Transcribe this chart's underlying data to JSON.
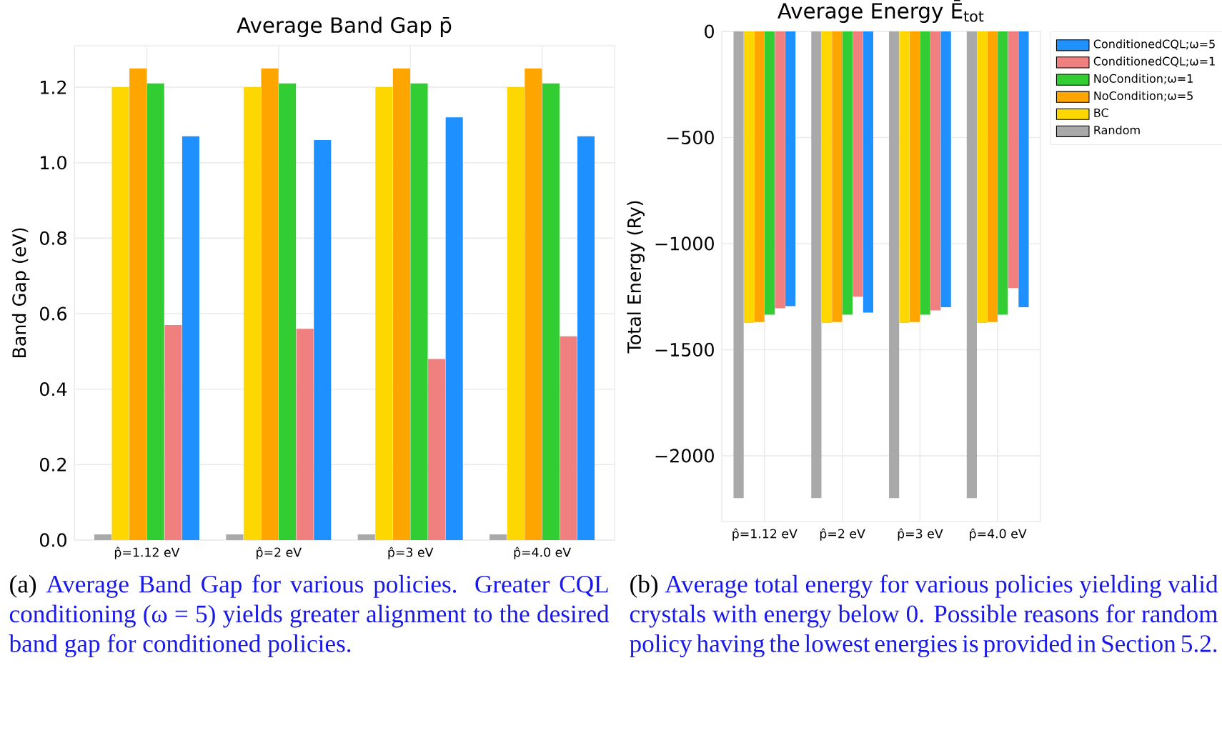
{
  "chart_data": [
    {
      "type": "bar",
      "title": "Average Band Gap p̄",
      "ylabel": "Band Gap (eV)",
      "categories": [
        "p̂=1.12 eV",
        "p̂=2 eV",
        "p̂=3 eV",
        "p̂=4.0 eV"
      ],
      "series": [
        {
          "color": "#a9a9a9",
          "values": [
            0.015,
            0.015,
            0.015,
            0.015
          ]
        },
        {
          "color": "#ffd700",
          "values": [
            1.2,
            1.2,
            1.2,
            1.2
          ]
        },
        {
          "color": "#ffa500",
          "values": [
            1.25,
            1.25,
            1.25,
            1.25
          ]
        },
        {
          "color": "#32cd32",
          "values": [
            1.21,
            1.21,
            1.21,
            1.21
          ]
        },
        {
          "color": "#f08080",
          "values": [
            0.57,
            0.56,
            0.48,
            0.54
          ]
        },
        {
          "color": "#1e90ff",
          "values": [
            1.07,
            1.06,
            1.12,
            1.07
          ]
        }
      ],
      "ylim": [
        0,
        1.31
      ],
      "yticks": [
        {
          "value": 0,
          "label": "0.0"
        },
        {
          "value": 0.2,
          "label": "0.2"
        },
        {
          "value": 0.4,
          "label": "0.4"
        },
        {
          "value": 0.6,
          "label": "0.6"
        },
        {
          "value": 0.8,
          "label": "0.8"
        },
        {
          "value": 1,
          "label": "1.0"
        },
        {
          "value": 1.2,
          "label": "1.2"
        }
      ],
      "grid": true,
      "annotations": [
        "(a)",
        "Average Band Gap for various policies. Greater CQL conditioning (ω = 5) yields greater alignment to the desired band gap for conditioned policies."
      ]
    },
    {
      "type": "bar",
      "title": "Average Energy Ē$_{tot}$",
      "ylabel": "Total Energy (Ry)",
      "categories": [
        "p̂=1.12 eV",
        "p̂=2 eV",
        "p̂=3 eV",
        "p̂=4.0 eV"
      ],
      "series": [
        {
          "name": "Random",
          "color": "#a9a9a9",
          "values": [
            -2200,
            -2200,
            -2200,
            -2200
          ]
        },
        {
          "name": "BC",
          "color": "#ffd700",
          "values": [
            -1375,
            -1375,
            -1375,
            -1375
          ]
        },
        {
          "name": "NoCondition;ω=5",
          "color": "#ffa500",
          "values": [
            -1370,
            -1370,
            -1370,
            -1370
          ]
        },
        {
          "name": "NoCondition;ω=1",
          "color": "#32cd32",
          "values": [
            -1335,
            -1335,
            -1335,
            -1335
          ]
        },
        {
          "name": "ConditionedCQL;ω=1",
          "color": "#f08080",
          "values": [
            -1305,
            -1250,
            -1315,
            -1210
          ]
        },
        {
          "name": "ConditionedCQL;ω=5",
          "color": "#1e90ff",
          "values": [
            -1295,
            -1325,
            -1300,
            -1300
          ]
        }
      ],
      "ylim": [
        -2310,
        0
      ],
      "yticks": [
        {
          "value": -2000,
          "label": "−2000"
        },
        {
          "value": -1500,
          "label": "−1500"
        },
        {
          "value": -1000,
          "label": "−1000"
        },
        {
          "value": -500,
          "label": "−500"
        },
        0
      ],
      "grid": true,
      "legend": "right",
      "annotations": [
        "(b)",
        "Average total energy for various policies yielding valid crystals with energy below 0. Possible reasons for random policy having the lowest energies is provided in Section 5.2."
      ]
    }
  ]
}
